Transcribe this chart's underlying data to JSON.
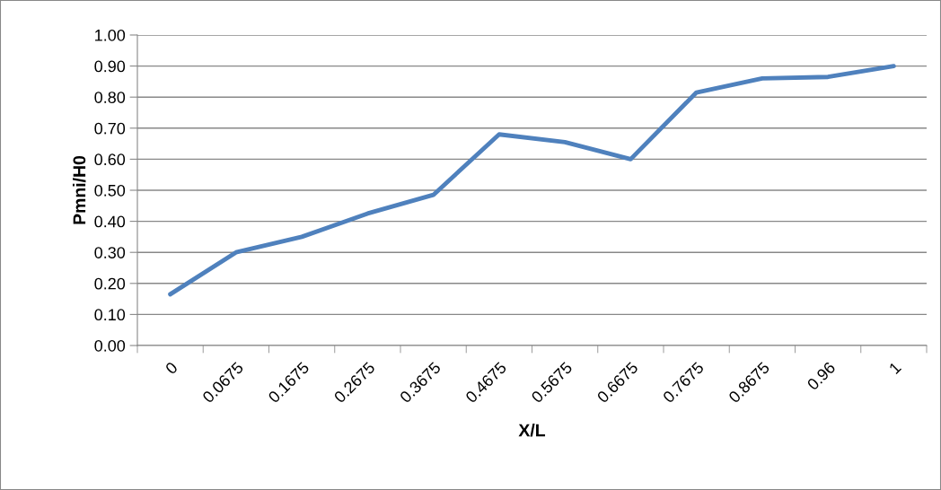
{
  "chart_data": {
    "type": "line",
    "xlabel": "X/L",
    "ylabel": "Pmni/H0",
    "categories": [
      "0",
      "0.0675",
      "0.1675",
      "0.2675",
      "0.3675",
      "0.4675",
      "0.5675",
      "0.6675",
      "0.7675",
      "0.8675",
      "0.96",
      "1"
    ],
    "series": [
      {
        "color": "#4f81bd",
        "values": [
          0.165,
          0.3,
          0.35,
          0.425,
          0.485,
          0.68,
          0.655,
          0.6,
          0.815,
          0.86,
          0.865,
          0.9
        ]
      }
    ],
    "ylim": [
      0,
      1
    ],
    "yticks": [
      {
        "value": 0,
        "label": "0.00"
      },
      {
        "value": 0.1,
        "label": "0.10"
      },
      {
        "value": 0.2,
        "label": "0.20"
      },
      {
        "value": 0.3,
        "label": "0.30"
      },
      {
        "value": 0.4,
        "label": "0.40"
      },
      {
        "value": 0.5,
        "label": "0.50"
      },
      {
        "value": 0.6,
        "label": "0.60"
      },
      {
        "value": 0.7,
        "label": "0.70"
      },
      {
        "value": 0.8,
        "label": "0.80"
      },
      {
        "value": 0.9,
        "label": "0.90"
      },
      {
        "value": 1.0,
        "label": "1.00"
      }
    ],
    "grid": "y",
    "marker": "none",
    "line_style": "solid"
  }
}
